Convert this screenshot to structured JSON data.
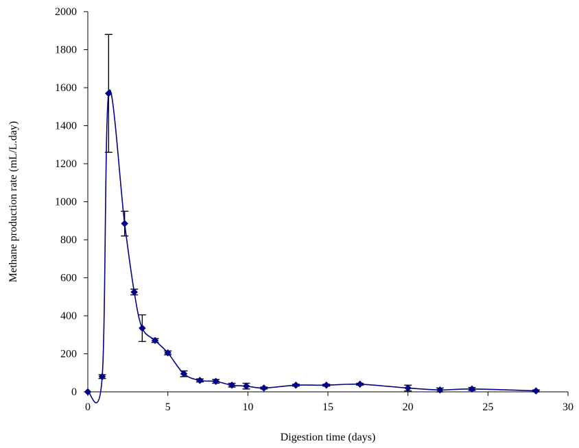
{
  "chart_data": {
    "type": "line",
    "title": "",
    "xlabel": "Digestion time (days)",
    "ylabel": "Methane production rate (mL/L.day)",
    "xlim": [
      0,
      30
    ],
    "ylim": [
      0,
      2000
    ],
    "xticks": [
      0,
      5,
      10,
      15,
      20,
      25,
      30
    ],
    "yticks": [
      0,
      200,
      400,
      600,
      800,
      1000,
      1200,
      1400,
      1600,
      1800,
      2000
    ],
    "grid": false,
    "legend": "none",
    "marker": "diamond",
    "color": "#00008b",
    "series": [
      {
        "x": [
          0,
          0.9,
          1.3,
          2.3,
          2.9,
          3.4,
          4.2,
          5.0,
          6.0,
          7.0,
          8.0,
          9.0,
          9.9,
          11.0,
          13.0,
          14.9,
          17.0,
          20.0,
          22.0,
          24.0,
          28.0
        ],
        "y": [
          0,
          80,
          1570,
          885,
          525,
          335,
          270,
          205,
          95,
          60,
          55,
          35,
          30,
          20,
          35,
          35,
          40,
          20,
          10,
          15,
          5
        ],
        "error": [
          0,
          10,
          310,
          65,
          15,
          70,
          10,
          10,
          15,
          8,
          10,
          10,
          15,
          5,
          5,
          5,
          5,
          15,
          10,
          8,
          5
        ]
      }
    ]
  }
}
